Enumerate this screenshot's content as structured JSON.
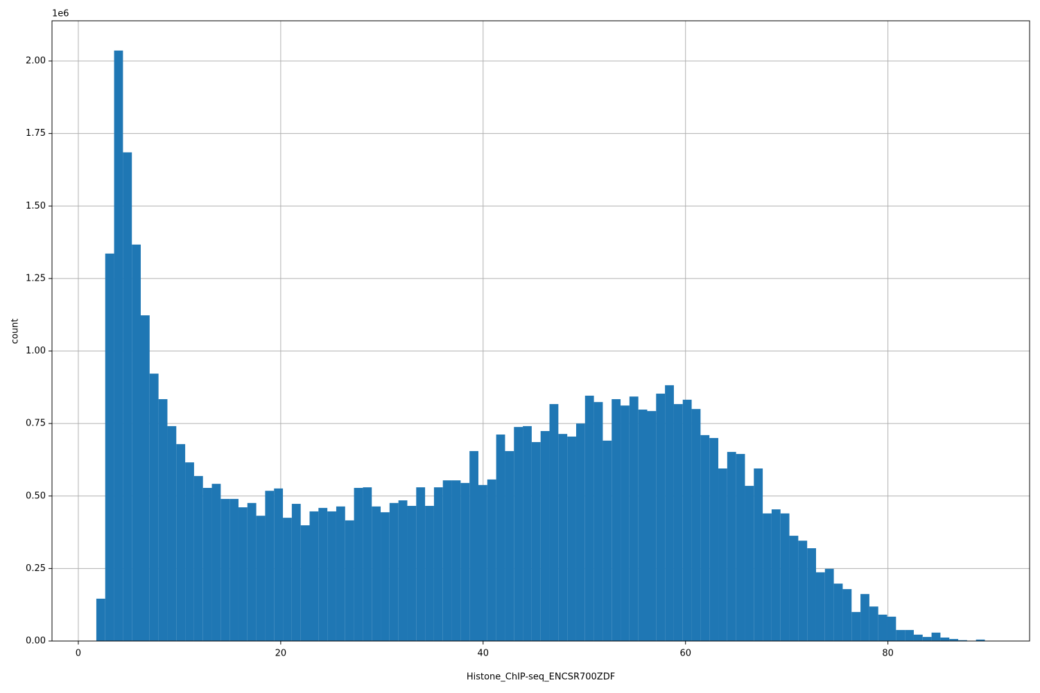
{
  "chart_data": {
    "type": "histogram",
    "xlabel": "Histone_ChIP-seq_ENCSR700ZDF",
    "ylabel": "count",
    "y_offset_label": "1e6",
    "color": "#1f77b4",
    "grid": true,
    "bins": [
      1.78,
      2.658,
      3.536,
      4.414,
      5.292,
      6.17,
      7.048,
      7.926,
      8.804,
      9.682,
      10.56,
      11.438,
      12.316,
      13.194,
      14.072,
      14.95,
      15.828,
      16.706,
      17.584,
      18.462,
      19.34,
      20.218,
      21.096,
      21.974,
      22.852,
      23.73,
      24.608,
      25.486,
      26.364,
      27.242,
      28.12,
      28.998,
      29.876,
      30.754,
      31.632,
      32.51,
      33.388,
      34.266,
      35.144,
      36.022,
      36.9,
      37.778,
      38.656,
      39.534,
      40.412,
      41.29,
      42.168,
      43.046,
      43.924,
      44.802,
      45.68,
      46.558,
      47.436,
      48.314,
      49.192,
      50.07,
      50.948,
      51.826,
      52.704,
      53.582,
      54.46,
      55.338,
      56.216,
      57.094,
      57.972,
      58.85,
      59.728,
      60.606,
      61.484,
      62.362,
      63.24,
      64.118,
      64.996,
      65.874,
      66.752,
      67.63,
      68.508,
      69.386,
      70.264,
      71.142,
      72.02,
      72.898,
      73.776,
      74.654,
      75.532,
      76.41,
      77.288,
      78.166,
      79.044,
      79.922,
      80.8,
      81.678,
      82.556,
      83.434,
      84.312,
      85.19,
      86.068,
      86.946,
      87.824,
      88.702,
      89.58
    ],
    "counts": [
      146000,
      1336000,
      2036000,
      1685000,
      1367000,
      1123000,
      922000,
      834000,
      741000,
      679000,
      616000,
      569000,
      528000,
      542000,
      490000,
      490000,
      461000,
      476000,
      432000,
      518000,
      526000,
      425000,
      473000,
      399000,
      447000,
      459000,
      447000,
      464000,
      416000,
      528000,
      530000,
      464000,
      444000,
      476000,
      485000,
      466000,
      530000,
      466000,
      530000,
      554000,
      554000,
      545000,
      655000,
      538000,
      557000,
      712000,
      655000,
      738000,
      741000,
      686000,
      724000,
      817000,
      714000,
      705000,
      750000,
      846000,
      824000,
      691000,
      834000,
      812000,
      843000,
      798000,
      793000,
      853000,
      882000,
      817000,
      832000,
      800000,
      710000,
      700000,
      595000,
      652000,
      645000,
      535000,
      595000,
      440000,
      454000,
      440000,
      363000,
      346000,
      320000,
      237000,
      249000,
      198000,
      179000,
      100000,
      162000,
      119000,
      91000,
      84000,
      38000,
      38000,
      22000,
      14000,
      29000,
      12000,
      7000,
      3000,
      1000,
      5000
    ],
    "xlim": [
      -2.6,
      94.0
    ],
    "xticks": [
      0,
      20,
      40,
      60,
      80
    ],
    "ylim": [
      0,
      2138600
    ],
    "yticks": [
      {
        "value": 0,
        "label": "0.00"
      },
      {
        "value": 250000,
        "label": "0.25"
      },
      {
        "value": 500000,
        "label": "0.50"
      },
      {
        "value": 750000,
        "label": "0.75"
      },
      {
        "value": 1000000,
        "label": "1.00"
      },
      {
        "value": 1250000,
        "label": "1.25"
      },
      {
        "value": 1500000,
        "label": "1.50"
      },
      {
        "value": 1750000,
        "label": "1.75"
      },
      {
        "value": 2000000,
        "label": "2.00"
      }
    ]
  }
}
